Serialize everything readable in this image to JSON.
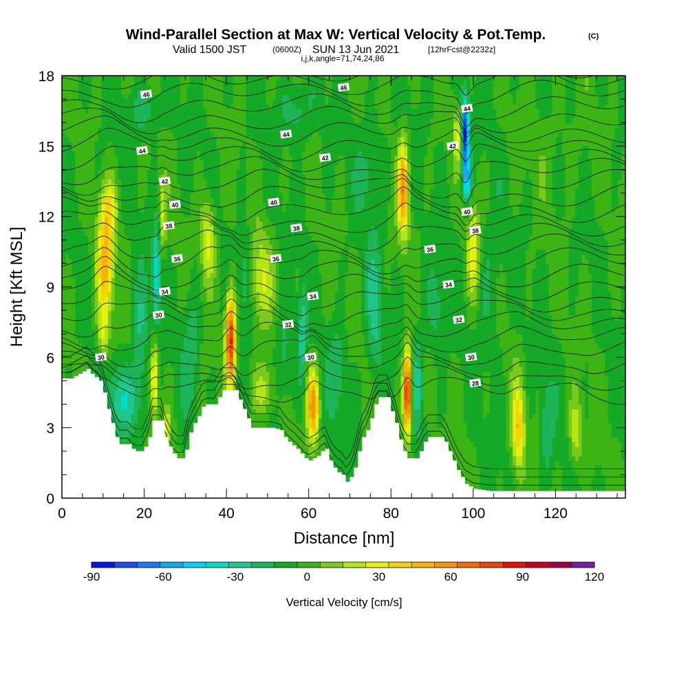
{
  "chart_data": {
    "type": "heatmap",
    "title": "Wind-Parallel Section at Max W: Vertical Velocity & Pot.Temp.",
    "title_mark": "(C)",
    "subtitle_valid": "Valid 1500 JST",
    "subtitle_utc": "(0600Z)",
    "subtitle_date": "SUN 13 Jun 2021",
    "subtitle_fcst": "[12hrFcst@2232z]",
    "subtitle_params": "i,j,k,angle=71,74,24,86",
    "xlabel": "Distance [nm]",
    "ylabel": "Height [Kft MSL]",
    "xlim": [
      0,
      137
    ],
    "ylim": [
      0,
      18
    ],
    "x_ticks": [
      "0",
      "20",
      "40",
      "60",
      "80",
      "100",
      "120"
    ],
    "y_ticks": [
      "0",
      "3",
      "6",
      "9",
      "12",
      "15",
      "18"
    ],
    "colorbar": {
      "label": "Vertical Velocity [cm/s]",
      "ticks": [
        "-90",
        "-60",
        "-30",
        "0",
        "30",
        "60",
        "90",
        "120"
      ],
      "range": [
        -90,
        120
      ],
      "step": 10,
      "colors": [
        "#0a14e6",
        "#1e4cf0",
        "#1e78f0",
        "#14a8f0",
        "#00d2f0",
        "#00dcc8",
        "#1ec88c",
        "#1eb45a",
        "#14aa28",
        "#3cb414",
        "#7dc81e",
        "#b4e614",
        "#e6f00a",
        "#f5d20a",
        "#f5b40a",
        "#f5960a",
        "#f06e0a",
        "#eb460a",
        "#e1140a",
        "#c8001e",
        "#a00046",
        "#781ea0"
      ]
    },
    "contour_field": "potential temperature",
    "contour_labels": [
      {
        "v": "46",
        "x": 20.5,
        "y": 17.2
      },
      {
        "v": "46",
        "x": 68.5,
        "y": 17.5
      },
      {
        "v": "44",
        "x": 19.5,
        "y": 14.8
      },
      {
        "v": "44",
        "x": 54.5,
        "y": 15.5
      },
      {
        "v": "44",
        "x": 98.5,
        "y": 16.6
      },
      {
        "v": "42",
        "x": 25,
        "y": 13.5
      },
      {
        "v": "42",
        "x": 64,
        "y": 14.5
      },
      {
        "v": "42",
        "x": 95,
        "y": 15
      },
      {
        "v": "40",
        "x": 27.5,
        "y": 12.5
      },
      {
        "v": "40",
        "x": 51.5,
        "y": 12.6
      },
      {
        "v": "40",
        "x": 98.5,
        "y": 12.2
      },
      {
        "v": "38",
        "x": 26,
        "y": 11.6
      },
      {
        "v": "38",
        "x": 57,
        "y": 11.5
      },
      {
        "v": "38",
        "x": 100.5,
        "y": 11.4
      },
      {
        "v": "36",
        "x": 28,
        "y": 10.2
      },
      {
        "v": "36",
        "x": 52,
        "y": 10.2
      },
      {
        "v": "36",
        "x": 89.5,
        "y": 10.6
      },
      {
        "v": "34",
        "x": 25,
        "y": 8.8
      },
      {
        "v": "34",
        "x": 61,
        "y": 8.6
      },
      {
        "v": "34",
        "x": 94,
        "y": 9.1
      },
      {
        "v": "32",
        "x": 55,
        "y": 7.4
      },
      {
        "v": "32",
        "x": 96.5,
        "y": 7.6
      },
      {
        "v": "30",
        "x": 23.5,
        "y": 7.8
      },
      {
        "v": "30",
        "x": 60.5,
        "y": 6.0
      },
      {
        "v": "30",
        "x": 99.5,
        "y": 6.0
      },
      {
        "v": "30",
        "x": 9.5,
        "y": 6.0
      },
      {
        "v": "28",
        "x": 100.5,
        "y": 4.9
      }
    ],
    "terrain_profile": [
      [
        0,
        5.1
      ],
      [
        2,
        5.1
      ],
      [
        4,
        5.3
      ],
      [
        6,
        5.5
      ],
      [
        7,
        5.3
      ],
      [
        9,
        5.0
      ],
      [
        10,
        4.5
      ],
      [
        11,
        3.8
      ],
      [
        12,
        3.2
      ],
      [
        13,
        2.6
      ],
      [
        14,
        2.3
      ],
      [
        16,
        2.3
      ],
      [
        17,
        2.1
      ],
      [
        18,
        2.0
      ],
      [
        19.5,
        2.0
      ],
      [
        21,
        2.6
      ],
      [
        22,
        3.3
      ],
      [
        24,
        3.3
      ],
      [
        25,
        2.6
      ],
      [
        26,
        2.2
      ],
      [
        27,
        1.9
      ],
      [
        28,
        1.7
      ],
      [
        29.5,
        1.7
      ],
      [
        31,
        2.8
      ],
      [
        32,
        3.2
      ],
      [
        33,
        3.5
      ],
      [
        34,
        3.9
      ],
      [
        35,
        4.0
      ],
      [
        37,
        4.0
      ],
      [
        38,
        4.3
      ],
      [
        39,
        4.6
      ],
      [
        42,
        4.6
      ],
      [
        43,
        4.2
      ],
      [
        44,
        3.8
      ],
      [
        45,
        3.4
      ],
      [
        46,
        3.0
      ],
      [
        51,
        3.0
      ],
      [
        53,
        2.9
      ],
      [
        54,
        2.6
      ],
      [
        55,
        2.4
      ],
      [
        57,
        2.1
      ],
      [
        58,
        1.9
      ],
      [
        59,
        1.7
      ],
      [
        60,
        1.6
      ],
      [
        62,
        1.8
      ],
      [
        63,
        2.0
      ],
      [
        64,
        2.1
      ],
      [
        65,
        1.6
      ],
      [
        66,
        1.3
      ],
      [
        67,
        1.1
      ],
      [
        68,
        1.0
      ],
      [
        69,
        0.7
      ],
      [
        70,
        0.9
      ],
      [
        71,
        1.3
      ],
      [
        72,
        2.0
      ],
      [
        73,
        2.6
      ],
      [
        74,
        2.9
      ],
      [
        75,
        3.4
      ],
      [
        76,
        4.0
      ],
      [
        77,
        4.3
      ],
      [
        79,
        4.3
      ],
      [
        80,
        3.7
      ],
      [
        81,
        3.2
      ],
      [
        82,
        2.5
      ],
      [
        83,
        2.0
      ],
      [
        84,
        1.7
      ],
      [
        86,
        1.7
      ],
      [
        87,
        2.0
      ],
      [
        88,
        2.4
      ],
      [
        89,
        2.6
      ],
      [
        92,
        2.6
      ],
      [
        93,
        2.4
      ],
      [
        94,
        2.0
      ],
      [
        95,
        1.6
      ],
      [
        96,
        1.2
      ],
      [
        97,
        0.9
      ],
      [
        98,
        0.6
      ],
      [
        100,
        0.4
      ],
      [
        104,
        0.3
      ],
      [
        137,
        0.3
      ]
    ],
    "w_cores": [
      {
        "x": 10.5,
        "y": 9.8,
        "wx": 2.0,
        "wy": 2.3,
        "w": 55
      },
      {
        "x": 11.5,
        "y": 12.4,
        "wx": 2.0,
        "wy": 1.2,
        "w": 30
      },
      {
        "x": 10.0,
        "y": 7.0,
        "wx": 1.3,
        "wy": 1.0,
        "w": 25
      },
      {
        "x": 19.0,
        "y": 7.0,
        "wx": 1.8,
        "wy": 2.5,
        "w": -22
      },
      {
        "x": 15.0,
        "y": 4.2,
        "wx": 5.0,
        "wy": 1.4,
        "w": -25
      },
      {
        "x": 23.0,
        "y": 9.5,
        "wx": 1.0,
        "wy": 2.0,
        "w": -38
      },
      {
        "x": 22.5,
        "y": 5.0,
        "wx": 0.9,
        "wy": 1.5,
        "w": 50
      },
      {
        "x": 25.5,
        "y": 3.0,
        "wx": 1.0,
        "wy": 0.8,
        "w": 30
      },
      {
        "x": 24.5,
        "y": 12.0,
        "wx": 0.8,
        "wy": 1.5,
        "w": 30
      },
      {
        "x": 31.5,
        "y": 6.5,
        "wx": 2.0,
        "wy": 2.5,
        "w": -18
      },
      {
        "x": 35.5,
        "y": 11.0,
        "wx": 1.8,
        "wy": 1.8,
        "w": 35
      },
      {
        "x": 41.0,
        "y": 6.8,
        "wx": 1.2,
        "wy": 2.0,
        "w": 95
      },
      {
        "x": 44.5,
        "y": 9.5,
        "wx": 1.5,
        "wy": 2.0,
        "w": -18
      },
      {
        "x": 48.5,
        "y": 9.3,
        "wx": 2.5,
        "wy": 2.0,
        "w": 28
      },
      {
        "x": 49.0,
        "y": 4.6,
        "wx": 2.5,
        "wy": 1.2,
        "w": 28
      },
      {
        "x": 54.0,
        "y": 6.0,
        "wx": 2.0,
        "wy": 2.0,
        "w": -18
      },
      {
        "x": 58.5,
        "y": 7.0,
        "wx": 1.0,
        "wy": 2.0,
        "w": -30
      },
      {
        "x": 61.0,
        "y": 4.0,
        "wx": 1.4,
        "wy": 1.5,
        "w": 65
      },
      {
        "x": 67.0,
        "y": 5.5,
        "wx": 2.0,
        "wy": 2.0,
        "w": -18
      },
      {
        "x": 76.0,
        "y": 8.0,
        "wx": 2.0,
        "wy": 3.0,
        "w": -22
      },
      {
        "x": 83.0,
        "y": 13.2,
        "wx": 1.3,
        "wy": 2.0,
        "w": 65
      },
      {
        "x": 84.0,
        "y": 4.5,
        "wx": 1.0,
        "wy": 1.8,
        "w": 100
      },
      {
        "x": 86.5,
        "y": 5.0,
        "wx": 1.5,
        "wy": 2.0,
        "w": -22
      },
      {
        "x": 91.0,
        "y": 8.0,
        "wx": 2.5,
        "wy": 2.0,
        "w": -15
      },
      {
        "x": 96.5,
        "y": 15.5,
        "wx": 1.2,
        "wy": 1.2,
        "w": 35
      },
      {
        "x": 98.0,
        "y": 15.5,
        "wx": 1.0,
        "wy": 1.5,
        "w": -90
      },
      {
        "x": 98.5,
        "y": 13.5,
        "wx": 1.0,
        "wy": 1.0,
        "w": -45
      },
      {
        "x": 100.0,
        "y": 10.5,
        "wx": 1.5,
        "wy": 2.0,
        "w": 35
      },
      {
        "x": 104.0,
        "y": 9.0,
        "wx": 3.0,
        "wy": 3.0,
        "w": -12
      },
      {
        "x": 111.0,
        "y": 3.0,
        "wx": 1.5,
        "wy": 2.0,
        "w": 45
      },
      {
        "x": 118.0,
        "y": 3.0,
        "wx": 1.5,
        "wy": 2.0,
        "w": -20
      },
      {
        "x": 125.0,
        "y": 2.8,
        "wx": 1.5,
        "wy": 1.5,
        "w": 28
      },
      {
        "x": 20.0,
        "y": 16.5,
        "wx": 4.0,
        "wy": 1.0,
        "w": -18
      },
      {
        "x": 57.0,
        "y": 16.5,
        "wx": 4.0,
        "wy": 1.2,
        "w": -18
      },
      {
        "x": 75.0,
        "y": 14.0,
        "wx": 3.0,
        "wy": 2.0,
        "w": -15
      },
      {
        "x": 120.0,
        "y": 15.0,
        "wx": 8.0,
        "wy": 2.0,
        "w": 5
      }
    ]
  }
}
